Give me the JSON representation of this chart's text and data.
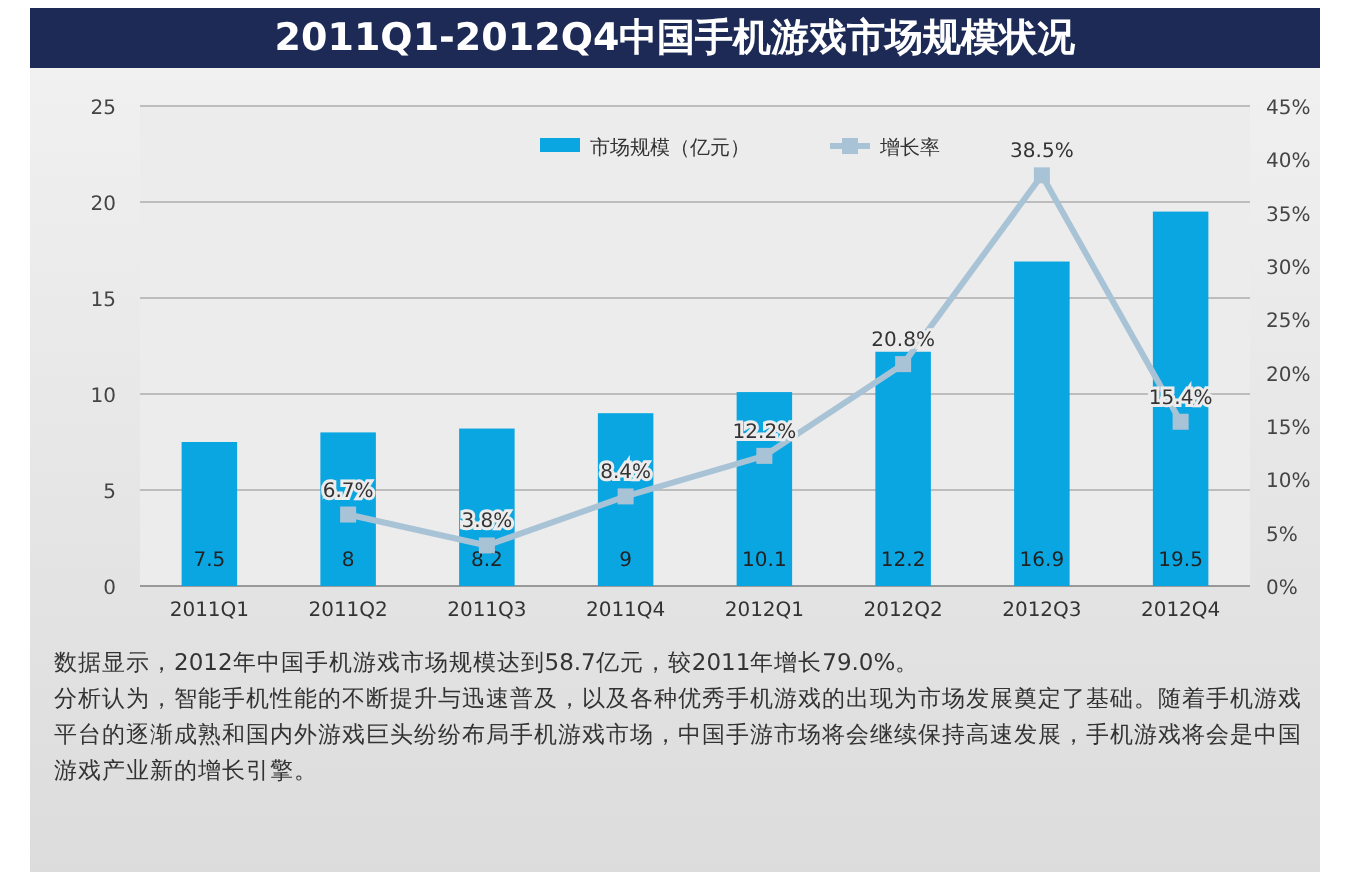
{
  "chart_data": {
    "type": "bar",
    "title": "2011Q1-2012Q4中国手机游戏市场规模状况",
    "categories": [
      "2011Q1",
      "2011Q2",
      "2011Q3",
      "2011Q4",
      "2012Q1",
      "2012Q2",
      "2012Q3",
      "2012Q4"
    ],
    "series": [
      {
        "name": "市场规模（亿元）",
        "color": "#0aa6e2",
        "values": [
          7.5,
          8,
          8.2,
          9,
          10.1,
          12.2,
          16.9,
          19.5
        ],
        "value_labels": [
          "7.5",
          "8",
          "8.2",
          "9",
          "10.1",
          "12.2",
          "16.9",
          "19.5"
        ]
      },
      {
        "name": "增长率",
        "type": "line",
        "axis": "y2",
        "color": "#a9c3d6",
        "marker": "square",
        "values": [
          null,
          6.7,
          3.8,
          8.4,
          12.2,
          20.8,
          38.5,
          15.4
        ],
        "value_labels": [
          null,
          "6.7%",
          "3.8%",
          "8.4%",
          "12.2%",
          "20.8%",
          "38.5%",
          "15.4%"
        ]
      }
    ],
    "ylim": [
      0,
      25
    ],
    "yticks": [
      0,
      5,
      10,
      15,
      20,
      25
    ],
    "y2lim": [
      0,
      45
    ],
    "y2ticks": [
      {
        "value": 0,
        "label": "0%"
      },
      {
        "value": 5,
        "label": "5%"
      },
      {
        "value": 10,
        "label": "10%"
      },
      {
        "value": 15,
        "label": "15%"
      },
      {
        "value": 20,
        "label": "20%"
      },
      {
        "value": 25,
        "label": "25%"
      },
      {
        "value": 30,
        "label": "30%"
      },
      {
        "value": 35,
        "label": "35%"
      },
      {
        "value": 40,
        "label": "40%"
      },
      {
        "value": 45,
        "label": "45%"
      }
    ],
    "grid": "y",
    "legend": "top",
    "annotations": [
      "数据显示，2012年中国手机游戏市场规模达到58.7亿元，较2011年增长79.0%。",
      "分析认为，智能手机性能的不断提升与迅速普及，以及各种优秀手机游戏的出现为市场发展奠定了基础。随着手机游戏平台的逐渐成熟和国内外游戏巨头纷纷布局手机游戏市场，中国手游市场将会继续保持高速发展，手机游戏将会是中国游戏产业新的增长引擎。"
    ]
  }
}
